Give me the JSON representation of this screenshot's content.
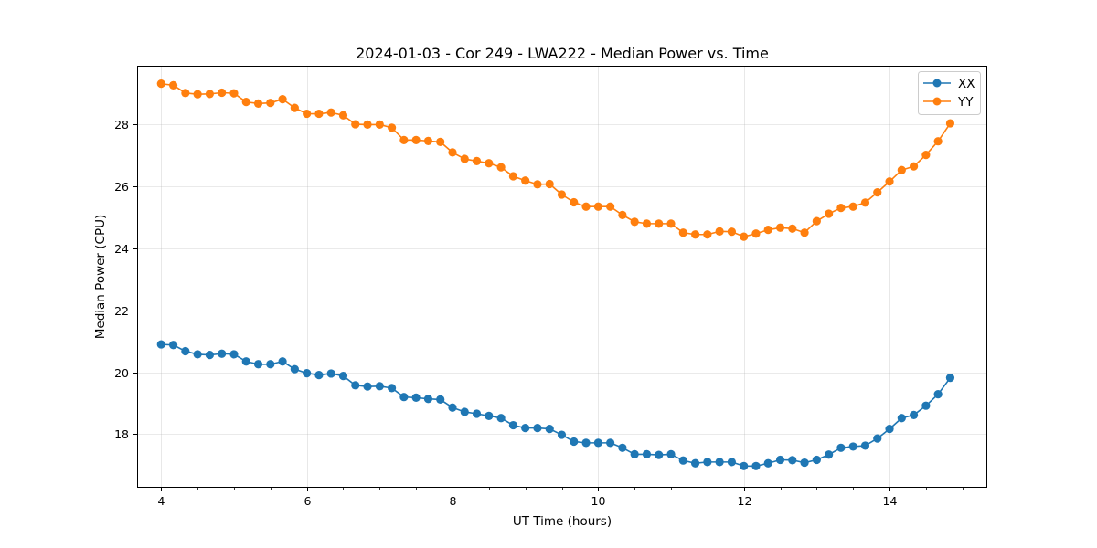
{
  "chart_data": {
    "type": "line",
    "title": "2024-01-03 - Cor 249 - LWA222 - Median Power vs. Time",
    "xlabel": "UT Time (hours)",
    "ylabel": "Median Power (CPU)",
    "xlim": [
      3.67,
      15.33
    ],
    "ylim": [
      16.3,
      29.9
    ],
    "xticks": [
      4,
      6,
      8,
      10,
      12,
      14
    ],
    "xtick_labels": [
      "4",
      "6",
      "8",
      "10",
      "12",
      "14"
    ],
    "yticks": [
      18,
      20,
      22,
      24,
      26,
      28
    ],
    "ytick_labels": [
      "18",
      "20",
      "22",
      "24",
      "26",
      "28"
    ],
    "grid": true,
    "legend_position": "top-right",
    "x": [
      4.0,
      4.1667,
      4.3333,
      4.5,
      4.6667,
      4.8333,
      5.0,
      5.1667,
      5.3333,
      5.5,
      5.6667,
      5.8333,
      6.0,
      6.1667,
      6.3333,
      6.5,
      6.6667,
      6.8333,
      7.0,
      7.1667,
      7.3333,
      7.5,
      7.6667,
      7.8333,
      8.0,
      8.1667,
      8.3333,
      8.5,
      8.6667,
      8.8333,
      9.0,
      9.1667,
      9.3333,
      9.5,
      9.6667,
      9.8333,
      10.0,
      10.1667,
      10.3333,
      10.5,
      10.6667,
      10.8333,
      11.0,
      11.1667,
      11.3333,
      11.5,
      11.6667,
      11.8333,
      12.0,
      12.1667,
      12.3333,
      12.5,
      12.6667,
      12.8333,
      13.0,
      13.1667,
      13.3333,
      13.5,
      13.6667,
      13.8333,
      14.0,
      14.1667,
      14.3333,
      14.5,
      14.6667,
      14.8333
    ],
    "series": [
      {
        "name": "XX",
        "color": "#1f77b4",
        "values": [
          20.9,
          20.88,
          20.68,
          20.58,
          20.56,
          20.6,
          20.58,
          20.35,
          20.26,
          20.26,
          20.35,
          20.1,
          19.97,
          19.91,
          19.96,
          19.88,
          19.58,
          19.54,
          19.55,
          19.49,
          19.2,
          19.18,
          19.14,
          19.12,
          18.86,
          18.72,
          18.66,
          18.59,
          18.52,
          18.29,
          18.2,
          18.2,
          18.17,
          17.98,
          17.76,
          17.72,
          17.72,
          17.72,
          17.56,
          17.35,
          17.35,
          17.33,
          17.35,
          17.15,
          17.06,
          17.1,
          17.1,
          17.1,
          16.97,
          16.97,
          17.06,
          17.17,
          17.16,
          17.08,
          17.17,
          17.34,
          17.56,
          17.6,
          17.63,
          17.86,
          18.17,
          18.52,
          18.62,
          18.92,
          19.29,
          19.82
        ]
      },
      {
        "name": "YY",
        "color": "#ff7f0e",
        "values": [
          29.32,
          29.27,
          29.02,
          28.98,
          28.99,
          29.03,
          29.01,
          28.73,
          28.68,
          28.7,
          28.82,
          28.54,
          28.35,
          28.35,
          28.39,
          28.3,
          28.01,
          28.0,
          28.0,
          27.9,
          27.5,
          27.5,
          27.47,
          27.44,
          27.1,
          26.89,
          26.82,
          26.75,
          26.62,
          26.33,
          26.19,
          26.07,
          26.08,
          25.74,
          25.49,
          25.35,
          25.35,
          25.35,
          25.08,
          24.86,
          24.8,
          24.8,
          24.8,
          24.51,
          24.45,
          24.45,
          24.55,
          24.54,
          24.38,
          24.48,
          24.6,
          24.67,
          24.64,
          24.51,
          24.88,
          25.12,
          25.31,
          25.35,
          25.48,
          25.81,
          26.16,
          26.53,
          26.65,
          27.02,
          27.46,
          28.04
        ]
      }
    ]
  }
}
